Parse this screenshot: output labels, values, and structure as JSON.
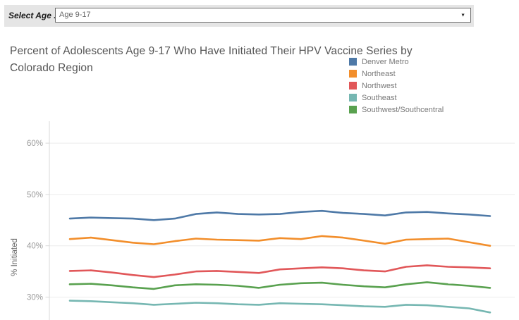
{
  "filter": {
    "label": "Select Age ...",
    "value": "Age 9-17",
    "caret_icon": "▼"
  },
  "title": {
    "line1": "Percent of Adolescents Age 9-17 Who Have Initiated Their HPV Vaccine Series by",
    "line2": "Colorado Region"
  },
  "legend": {
    "items": [
      {
        "label": "Denver Metro",
        "color": "#4e79a7"
      },
      {
        "label": "Northeast",
        "color": "#f28e2b"
      },
      {
        "label": "Northwest",
        "color": "#e15759"
      },
      {
        "label": "Southeast",
        "color": "#76b7b2"
      },
      {
        "label": "Southwest/Southcentral",
        "color": "#59a14f"
      }
    ]
  },
  "chart_data": {
    "type": "line",
    "title": "Percent of Adolescents Age 9-17 Who Have Initiated Their HPV Vaccine Series by Colorado Region",
    "xlabel": "",
    "ylabel": "% Initiated",
    "ylim": [
      25.5,
      64.5
    ],
    "yticks": [
      30,
      40,
      50,
      60
    ],
    "ytick_labels": [
      "30%",
      "40%",
      "50%",
      "60%"
    ],
    "grid": true,
    "legend_position": "top-right",
    "x": [
      0,
      1,
      2,
      3,
      4,
      5,
      6,
      7,
      8,
      9,
      10,
      11,
      12,
      13,
      14,
      15,
      16,
      17,
      18,
      19,
      20
    ],
    "series": [
      {
        "name": "Denver Metro",
        "color": "#4e79a7",
        "values": [
          45.3,
          45.5,
          45.4,
          45.3,
          45.0,
          45.3,
          46.2,
          46.5,
          46.2,
          46.1,
          46.2,
          46.6,
          46.8,
          46.4,
          46.2,
          45.9,
          46.5,
          46.6,
          46.3,
          46.1,
          45.8
        ]
      },
      {
        "name": "Northeast",
        "color": "#f28e2b",
        "values": [
          41.3,
          41.6,
          41.1,
          40.6,
          40.3,
          40.9,
          41.4,
          41.2,
          41.1,
          41.0,
          41.5,
          41.3,
          41.9,
          41.6,
          41.0,
          40.4,
          41.2,
          41.3,
          41.4,
          40.7,
          40.0
        ]
      },
      {
        "name": "Northwest",
        "color": "#e15759",
        "values": [
          35.1,
          35.2,
          34.8,
          34.3,
          33.9,
          34.4,
          35.0,
          35.1,
          34.9,
          34.7,
          35.4,
          35.6,
          35.8,
          35.6,
          35.2,
          35.0,
          35.9,
          36.2,
          35.9,
          35.8,
          35.6
        ]
      },
      {
        "name": "Southeast",
        "color": "#76b7b2",
        "values": [
          29.3,
          29.2,
          29.0,
          28.8,
          28.5,
          28.7,
          28.9,
          28.8,
          28.6,
          28.5,
          28.8,
          28.7,
          28.6,
          28.4,
          28.2,
          28.1,
          28.5,
          28.4,
          28.1,
          27.8,
          27.0
        ]
      },
      {
        "name": "Southwest/Southcentral",
        "color": "#59a14f",
        "values": [
          32.5,
          32.6,
          32.3,
          31.9,
          31.6,
          32.3,
          32.5,
          32.4,
          32.2,
          31.8,
          32.4,
          32.7,
          32.8,
          32.4,
          32.1,
          31.9,
          32.5,
          32.9,
          32.5,
          32.2,
          31.8
        ]
      }
    ]
  }
}
